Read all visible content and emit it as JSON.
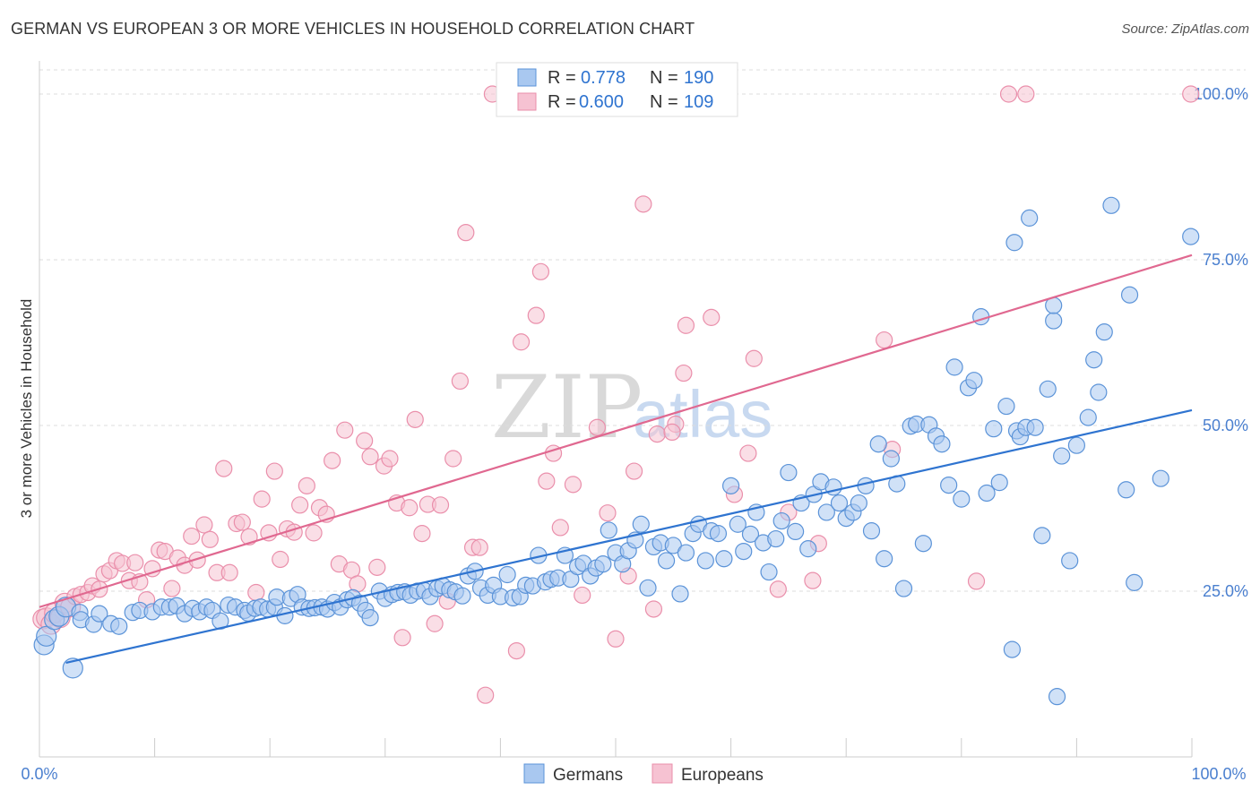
{
  "header": {
    "title": "GERMAN VS EUROPEAN 3 OR MORE VEHICLES IN HOUSEHOLD CORRELATION CHART",
    "source": "Source: ZipAtlas.com"
  },
  "watermark": {
    "zip": "ZIP",
    "atlas": "atlas"
  },
  "legend": {
    "rows": [
      {
        "r_label": "R =",
        "r_value": "0.778",
        "n_label": "N =",
        "n_value": "190"
      },
      {
        "r_label": "R =",
        "r_value": "0.600",
        "n_label": "N =",
        "n_value": "109"
      }
    ]
  },
  "bottom_legend": {
    "germans": "Germans",
    "europeans": "Europeans"
  },
  "colors": {
    "blue_fill": "#a9c8f0",
    "blue_stroke": "#5b93d8",
    "blue_line": "#2f74d0",
    "pink_fill": "#f6c2d2",
    "pink_stroke": "#ea8fab",
    "pink_line": "#e06890",
    "tick_label": "#4a7fcf",
    "grid": "#dddddd"
  },
  "chart_data": {
    "type": "scatter",
    "title": "GERMAN VS EUROPEAN 3 OR MORE VEHICLES IN HOUSEHOLD CORRELATION CHART",
    "xlabel": "",
    "ylabel": "3 or more Vehicles in Household",
    "xlim": [
      0,
      100
    ],
    "ylim": [
      0,
      105
    ],
    "x_tick_labels": [
      "0.0%",
      "100.0%"
    ],
    "y_ticks": [
      25,
      50,
      75,
      100
    ],
    "y_tick_labels": [
      "25.0%",
      "50.0%",
      "75.0%",
      "100.0%"
    ],
    "grid": true,
    "legend_position": "top-center",
    "series": [
      {
        "name": "Germans",
        "r": 0.778,
        "n": 190,
        "trend": {
          "x": [
            2.3,
            100
          ],
          "y": [
            14.2,
            52.3
          ]
        },
        "points": [
          [
            0.4,
            16.9
          ],
          [
            0.6,
            18.2
          ],
          [
            1.3,
            20.7
          ],
          [
            1.7,
            21.2
          ],
          [
            2.3,
            22.6
          ],
          [
            2.9,
            13.4
          ],
          [
            3.5,
            21.8
          ],
          [
            3.6,
            20.7
          ],
          [
            4.7,
            20.0
          ],
          [
            5.2,
            21.6
          ],
          [
            6.2,
            20.1
          ],
          [
            6.9,
            19.7
          ],
          [
            8.1,
            21.8
          ],
          [
            8.7,
            22.1
          ],
          [
            9.8,
            21.9
          ],
          [
            10.6,
            22.6
          ],
          [
            11.3,
            22.6
          ],
          [
            11.9,
            22.8
          ],
          [
            12.6,
            21.6
          ],
          [
            13.3,
            22.4
          ],
          [
            13.9,
            21.9
          ],
          [
            14.5,
            22.6
          ],
          [
            15.0,
            22.1
          ],
          [
            15.7,
            20.5
          ],
          [
            16.4,
            22.9
          ],
          [
            17.0,
            22.6
          ],
          [
            17.8,
            22.1
          ],
          [
            18.1,
            21.7
          ],
          [
            18.7,
            22.4
          ],
          [
            19.2,
            22.6
          ],
          [
            19.8,
            22.3
          ],
          [
            20.4,
            22.6
          ],
          [
            20.6,
            24.1
          ],
          [
            21.3,
            21.3
          ],
          [
            21.8,
            23.9
          ],
          [
            22.4,
            24.5
          ],
          [
            22.8,
            22.6
          ],
          [
            23.4,
            22.4
          ],
          [
            23.9,
            22.5
          ],
          [
            24.5,
            22.6
          ],
          [
            25.0,
            22.3
          ],
          [
            25.6,
            23.3
          ],
          [
            26.1,
            22.6
          ],
          [
            26.7,
            23.7
          ],
          [
            27.2,
            24.0
          ],
          [
            27.8,
            23.2
          ],
          [
            28.3,
            22.1
          ],
          [
            28.7,
            21.0
          ],
          [
            29.5,
            25.0
          ],
          [
            30.0,
            23.9
          ],
          [
            30.6,
            24.5
          ],
          [
            31.1,
            24.8
          ],
          [
            31.7,
            24.9
          ],
          [
            32.2,
            24.4
          ],
          [
            32.8,
            25.0
          ],
          [
            33.4,
            25.1
          ],
          [
            33.9,
            24.2
          ],
          [
            34.5,
            25.4
          ],
          [
            35.0,
            25.8
          ],
          [
            35.6,
            25.2
          ],
          [
            36.1,
            24.9
          ],
          [
            36.7,
            24.3
          ],
          [
            37.2,
            27.3
          ],
          [
            37.8,
            28.0
          ],
          [
            38.3,
            25.5
          ],
          [
            38.9,
            24.4
          ],
          [
            39.4,
            25.9
          ],
          [
            40.0,
            24.2
          ],
          [
            40.6,
            27.5
          ],
          [
            41.1,
            24.0
          ],
          [
            41.7,
            24.2
          ],
          [
            42.2,
            25.9
          ],
          [
            42.8,
            25.8
          ],
          [
            43.3,
            30.4
          ],
          [
            43.9,
            26.4
          ],
          [
            44.4,
            26.8
          ],
          [
            45.0,
            27.0
          ],
          [
            45.6,
            30.4
          ],
          [
            46.1,
            26.8
          ],
          [
            46.7,
            28.7
          ],
          [
            47.2,
            29.2
          ],
          [
            47.8,
            27.3
          ],
          [
            48.3,
            28.5
          ],
          [
            48.9,
            29.1
          ],
          [
            49.4,
            34.2
          ],
          [
            50.0,
            30.8
          ],
          [
            50.6,
            29.1
          ],
          [
            51.1,
            31.1
          ],
          [
            51.7,
            32.7
          ],
          [
            52.2,
            35.1
          ],
          [
            52.8,
            25.5
          ],
          [
            53.3,
            31.7
          ],
          [
            53.9,
            32.3
          ],
          [
            54.4,
            29.6
          ],
          [
            55.0,
            31.9
          ],
          [
            55.6,
            24.6
          ],
          [
            56.1,
            30.8
          ],
          [
            56.7,
            33.7
          ],
          [
            57.2,
            35.1
          ],
          [
            57.8,
            29.6
          ],
          [
            58.3,
            34.1
          ],
          [
            58.9,
            33.7
          ],
          [
            59.4,
            29.9
          ],
          [
            60.0,
            40.9
          ],
          [
            60.6,
            35.1
          ],
          [
            61.1,
            31.0
          ],
          [
            61.7,
            33.6
          ],
          [
            62.2,
            36.9
          ],
          [
            62.8,
            32.3
          ],
          [
            63.3,
            27.9
          ],
          [
            63.9,
            32.9
          ],
          [
            64.4,
            35.6
          ],
          [
            65.0,
            42.9
          ],
          [
            65.6,
            34.0
          ],
          [
            66.1,
            38.3
          ],
          [
            66.7,
            31.4
          ],
          [
            67.2,
            39.6
          ],
          [
            67.8,
            41.5
          ],
          [
            68.3,
            36.9
          ],
          [
            68.9,
            40.7
          ],
          [
            69.4,
            38.3
          ],
          [
            70.0,
            36.0
          ],
          [
            70.6,
            36.9
          ],
          [
            71.1,
            38.3
          ],
          [
            71.7,
            40.9
          ],
          [
            72.2,
            34.1
          ],
          [
            72.8,
            47.2
          ],
          [
            73.3,
            29.9
          ],
          [
            73.9,
            45.0
          ],
          [
            74.4,
            41.2
          ],
          [
            75.0,
            25.4
          ],
          [
            75.6,
            49.9
          ],
          [
            76.1,
            50.2
          ],
          [
            76.7,
            32.2
          ],
          [
            77.2,
            50.1
          ],
          [
            77.8,
            48.4
          ],
          [
            78.3,
            47.2
          ],
          [
            78.9,
            41.0
          ],
          [
            79.4,
            58.8
          ],
          [
            80.0,
            38.9
          ],
          [
            80.6,
            55.7
          ],
          [
            81.1,
            56.8
          ],
          [
            81.7,
            66.4
          ],
          [
            82.2,
            39.8
          ],
          [
            82.8,
            49.5
          ],
          [
            83.3,
            41.4
          ],
          [
            83.9,
            52.9
          ],
          [
            84.4,
            16.2
          ],
          [
            84.8,
            49.2
          ],
          [
            85.1,
            48.3
          ],
          [
            85.6,
            49.7
          ],
          [
            86.4,
            49.7
          ],
          [
            87.0,
            33.4
          ],
          [
            87.5,
            55.5
          ],
          [
            88.0,
            65.8
          ],
          [
            88.3,
            9.1
          ],
          [
            88.7,
            45.4
          ],
          [
            89.4,
            29.6
          ],
          [
            90.0,
            47.0
          ],
          [
            91.0,
            51.2
          ],
          [
            91.5,
            59.9
          ],
          [
            91.9,
            55.0
          ],
          [
            92.4,
            64.1
          ],
          [
            93.0,
            83.2
          ],
          [
            94.3,
            40.3
          ],
          [
            94.6,
            69.7
          ],
          [
            95.0,
            26.3
          ],
          [
            97.3,
            42.0
          ],
          [
            84.6,
            77.6
          ],
          [
            85.9,
            81.3
          ],
          [
            88.0,
            68.1
          ],
          [
            99.9,
            78.5
          ]
        ]
      },
      {
        "name": "Europeans",
        "r": 0.6,
        "n": 109,
        "trend": {
          "x": [
            0,
            100
          ],
          "y": [
            22.6,
            75.7
          ]
        },
        "points": [
          [
            0.3,
            20.8
          ],
          [
            0.6,
            21.0
          ],
          [
            1.0,
            20.0
          ],
          [
            1.3,
            21.7
          ],
          [
            1.8,
            21.0
          ],
          [
            2.2,
            23.2
          ],
          [
            2.7,
            22.6
          ],
          [
            3.1,
            24.2
          ],
          [
            3.6,
            24.5
          ],
          [
            4.2,
            24.8
          ],
          [
            4.6,
            25.8
          ],
          [
            5.2,
            25.3
          ],
          [
            5.6,
            27.6
          ],
          [
            6.1,
            28.1
          ],
          [
            6.7,
            29.6
          ],
          [
            7.2,
            29.2
          ],
          [
            7.8,
            26.6
          ],
          [
            8.3,
            29.3
          ],
          [
            8.7,
            26.4
          ],
          [
            9.3,
            23.7
          ],
          [
            9.8,
            28.4
          ],
          [
            10.4,
            31.2
          ],
          [
            10.9,
            31.0
          ],
          [
            11.5,
            25.4
          ],
          [
            12.0,
            30.0
          ],
          [
            12.6,
            28.9
          ],
          [
            13.2,
            33.3
          ],
          [
            13.7,
            29.7
          ],
          [
            14.3,
            35.0
          ],
          [
            14.8,
            32.8
          ],
          [
            15.4,
            27.8
          ],
          [
            16.0,
            43.5
          ],
          [
            16.5,
            27.8
          ],
          [
            17.1,
            35.2
          ],
          [
            17.6,
            35.4
          ],
          [
            18.2,
            33.2
          ],
          [
            18.8,
            24.8
          ],
          [
            19.3,
            38.9
          ],
          [
            19.9,
            33.8
          ],
          [
            20.4,
            43.1
          ],
          [
            20.9,
            29.8
          ],
          [
            21.5,
            34.4
          ],
          [
            22.1,
            33.9
          ],
          [
            22.6,
            38.0
          ],
          [
            23.2,
            40.9
          ],
          [
            23.8,
            33.8
          ],
          [
            24.3,
            37.6
          ],
          [
            24.9,
            36.6
          ],
          [
            25.4,
            44.7
          ],
          [
            26.0,
            29.1
          ],
          [
            26.5,
            49.3
          ],
          [
            27.1,
            28.2
          ],
          [
            27.6,
            26.1
          ],
          [
            28.2,
            47.7
          ],
          [
            28.7,
            45.3
          ],
          [
            29.3,
            28.6
          ],
          [
            29.9,
            43.9
          ],
          [
            30.4,
            45.0
          ],
          [
            31.0,
            38.3
          ],
          [
            31.5,
            18.0
          ],
          [
            32.1,
            37.6
          ],
          [
            32.6,
            50.9
          ],
          [
            33.2,
            33.7
          ],
          [
            33.7,
            38.1
          ],
          [
            34.3,
            20.1
          ],
          [
            34.8,
            38.0
          ],
          [
            35.4,
            23.5
          ],
          [
            35.9,
            45.0
          ],
          [
            36.5,
            56.7
          ],
          [
            37.0,
            79.1
          ],
          [
            37.6,
            31.6
          ],
          [
            38.2,
            31.6
          ],
          [
            38.7,
            9.3
          ],
          [
            39.3,
            100
          ],
          [
            41.4,
            16.0
          ],
          [
            41.8,
            62.6
          ],
          [
            43.1,
            66.6
          ],
          [
            43.5,
            73.2
          ],
          [
            44.0,
            41.6
          ],
          [
            44.6,
            45.8
          ],
          [
            45.2,
            34.6
          ],
          [
            46.3,
            41.1
          ],
          [
            47.1,
            24.4
          ],
          [
            48.4,
            49.7
          ],
          [
            49.3,
            36.8
          ],
          [
            50.0,
            17.8
          ],
          [
            51.1,
            27.3
          ],
          [
            51.6,
            43.1
          ],
          [
            52.4,
            83.4
          ],
          [
            53.3,
            22.3
          ],
          [
            53.6,
            48.7
          ],
          [
            55.2,
            50.2
          ],
          [
            56.1,
            65.1
          ],
          [
            58.3,
            66.3
          ],
          [
            60.3,
            39.6
          ],
          [
            61.5,
            45.8
          ],
          [
            62.0,
            60.1
          ],
          [
            64.1,
            25.3
          ],
          [
            65.0,
            36.9
          ],
          [
            67.1,
            26.6
          ],
          [
            67.6,
            32.2
          ],
          [
            73.3,
            62.9
          ],
          [
            74.0,
            46.4
          ],
          [
            81.3,
            26.5
          ],
          [
            84.1,
            100
          ],
          [
            85.6,
            100
          ],
          [
            99.9,
            100
          ],
          [
            55.9,
            57.9
          ],
          [
            54.9,
            49.0
          ]
        ]
      }
    ]
  }
}
